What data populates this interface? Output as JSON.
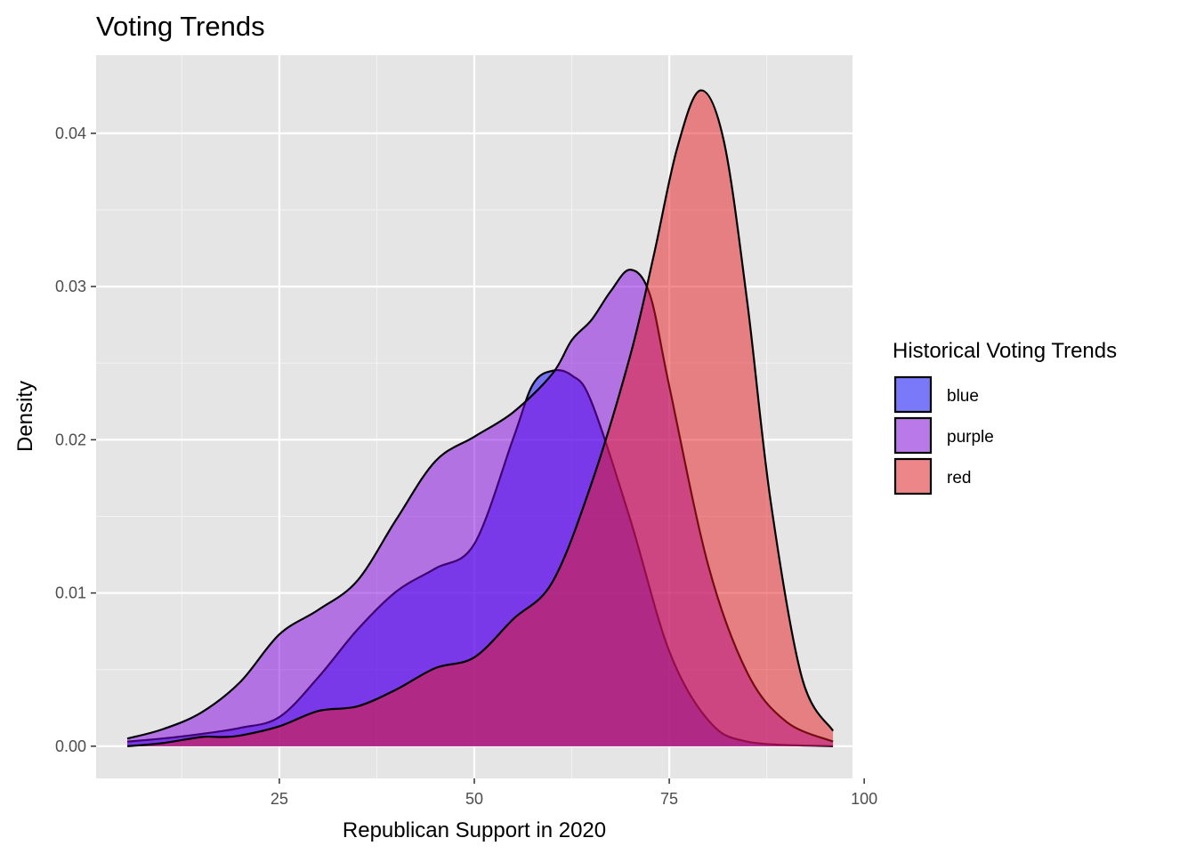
{
  "chart_data": {
    "type": "area",
    "title": "Voting Trends",
    "xlabel": "Republican Support in 2020",
    "ylabel": "Density",
    "xlim": [
      1.5,
      98.5
    ],
    "ylim": [
      -0.0021,
      0.0451
    ],
    "x_ticks": [
      25,
      50,
      75,
      100
    ],
    "x_tick_labels": [
      "25",
      "50",
      "75",
      "100"
    ],
    "y_ticks": [
      0.0,
      0.01,
      0.02,
      0.03,
      0.04
    ],
    "y_tick_labels": [
      "0.00",
      "0.01",
      "0.02",
      "0.03",
      "0.04"
    ],
    "grid": true,
    "legend_title": "Historical Voting Trends",
    "legend_position": "right",
    "series": [
      {
        "name": "blue",
        "color": "#0000FF",
        "x": [
          5.5,
          10,
          15,
          20,
          25,
          30,
          35,
          40,
          45,
          50,
          55,
          57.5,
          60,
          62.5,
          65,
          70,
          75,
          80,
          85,
          96
        ],
        "y": [
          0.0003,
          0.0005,
          0.0008,
          0.0012,
          0.0019,
          0.0045,
          0.0076,
          0.0101,
          0.0116,
          0.0132,
          0.0201,
          0.0236,
          0.0245,
          0.0242,
          0.0225,
          0.0148,
          0.0062,
          0.0017,
          0.0003,
          0.0
        ]
      },
      {
        "name": "purple",
        "color": "#8000E0",
        "x": [
          5.5,
          10,
          15,
          20,
          25,
          30,
          35,
          40,
          45,
          50,
          55,
          60,
          62.5,
          65,
          67.5,
          70,
          72.5,
          75,
          80,
          85,
          90,
          96
        ],
        "y": [
          0.0005,
          0.0011,
          0.0022,
          0.0042,
          0.0073,
          0.0089,
          0.0108,
          0.0148,
          0.0186,
          0.0202,
          0.0218,
          0.0243,
          0.0265,
          0.0278,
          0.0297,
          0.0311,
          0.0295,
          0.0235,
          0.0118,
          0.0048,
          0.0016,
          0.0003
        ]
      },
      {
        "name": "red",
        "color": "#E8191F",
        "x": [
          5.5,
          10,
          15,
          17.5,
          20,
          25,
          30,
          35,
          40,
          45,
          50,
          55,
          60,
          65,
          70,
          73,
          76,
          79,
          82,
          85,
          88,
          92,
          96
        ],
        "y": [
          0.0,
          0.0002,
          0.0006,
          0.0006,
          0.0007,
          0.0013,
          0.0023,
          0.0026,
          0.0037,
          0.0051,
          0.0058,
          0.0083,
          0.0107,
          0.0171,
          0.0255,
          0.032,
          0.039,
          0.0428,
          0.0395,
          0.029,
          0.016,
          0.0045,
          0.001
        ]
      }
    ]
  }
}
